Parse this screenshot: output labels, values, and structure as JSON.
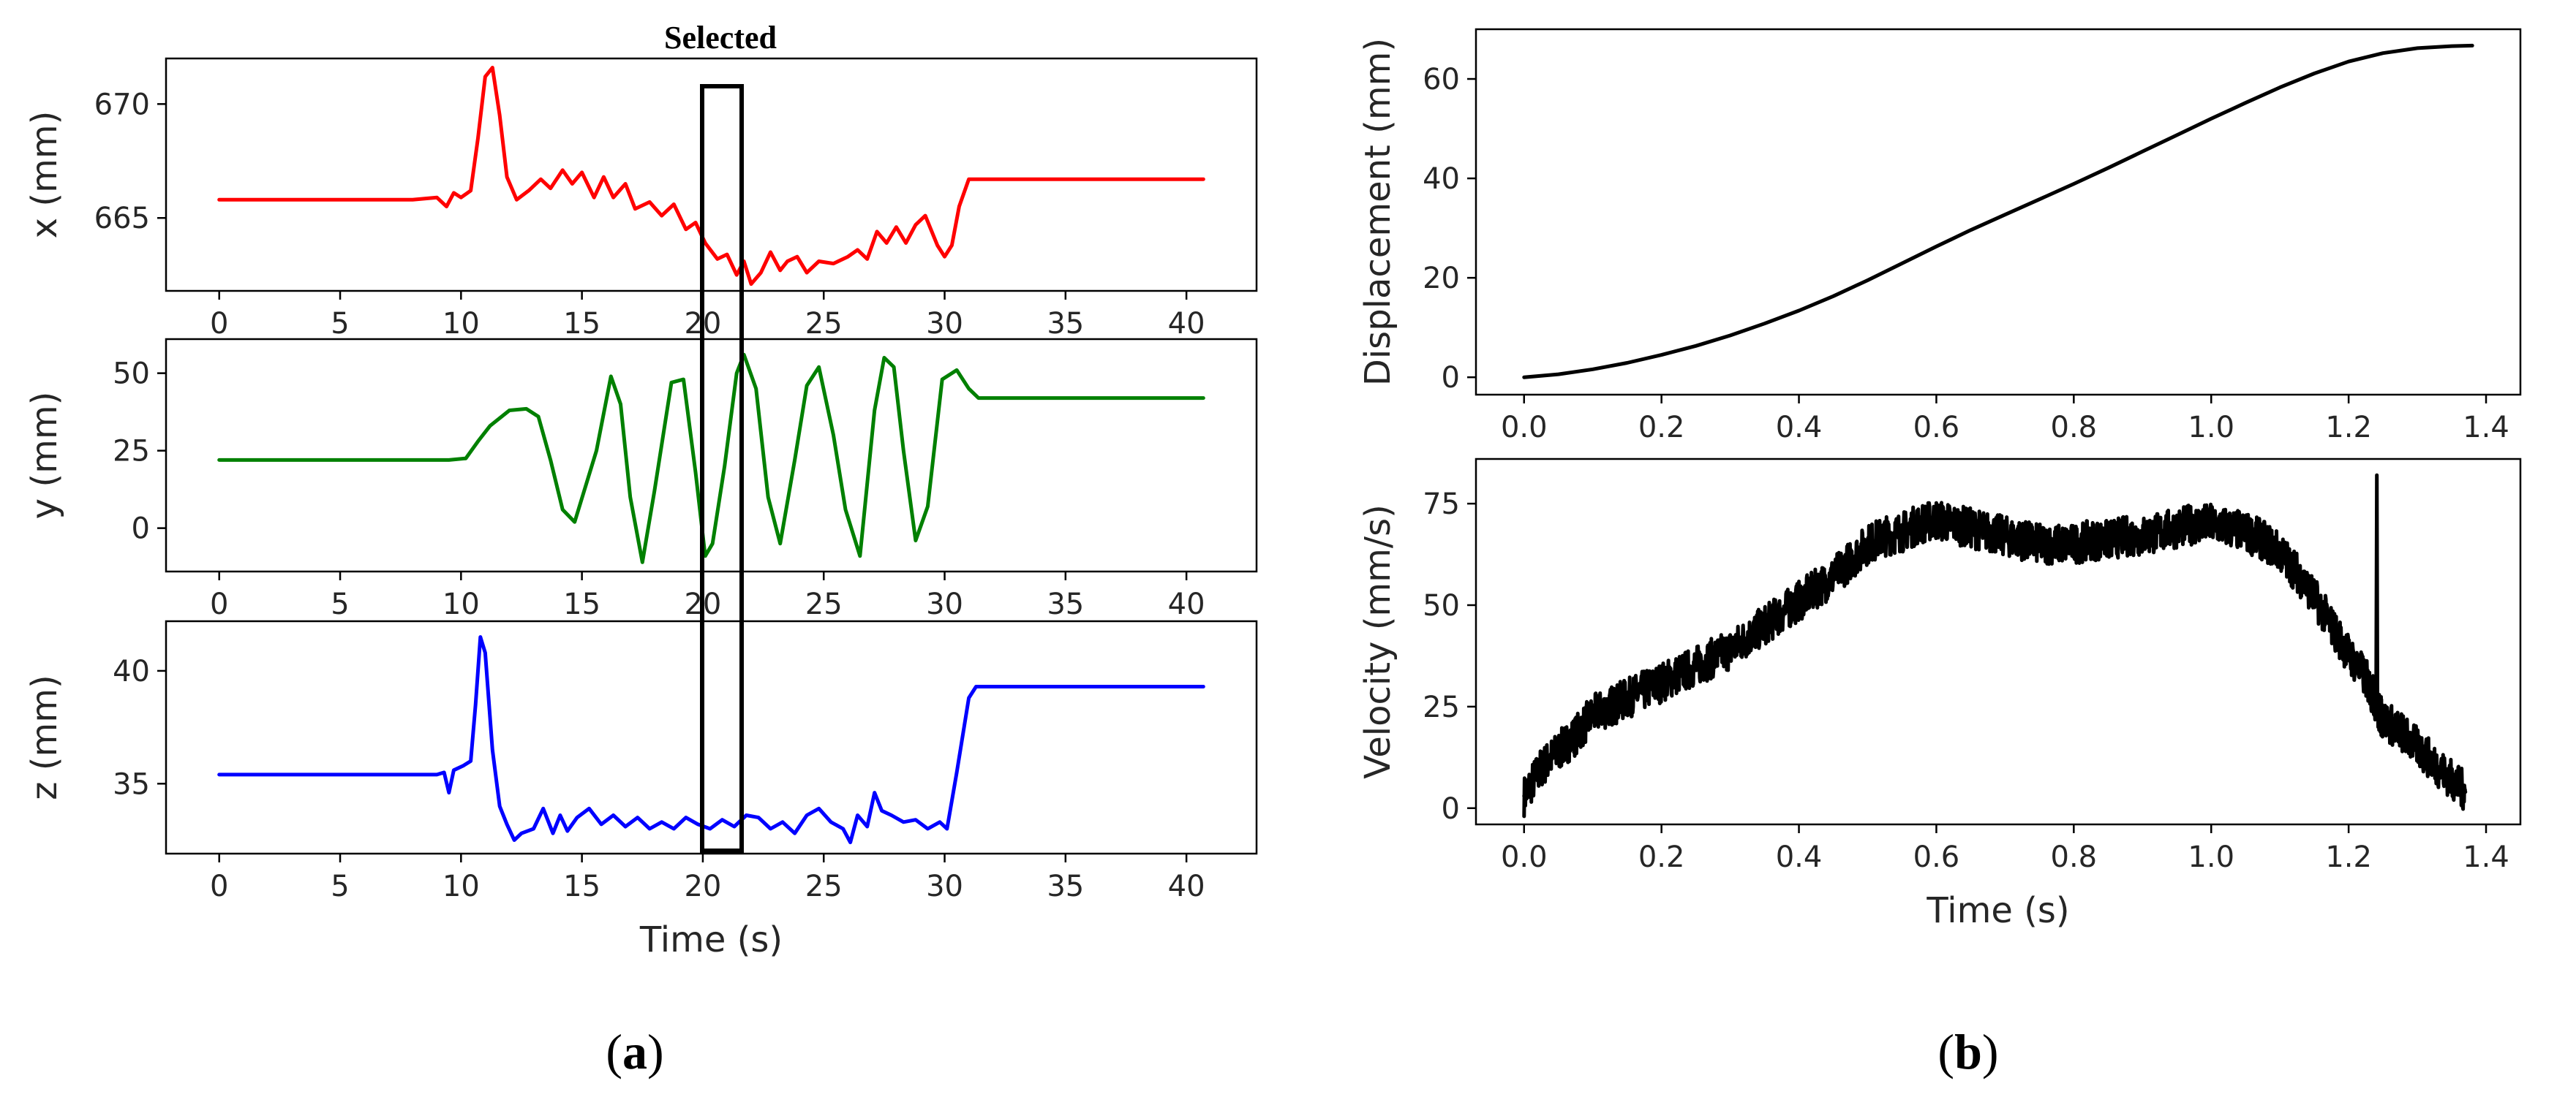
{
  "captions": {
    "a": "(a)",
    "b": "(b)"
  },
  "selected_label": "Selected",
  "chart_data": [
    {
      "id": "x",
      "type": "line",
      "xlabel": "",
      "ylabel": "x (mm)",
      "color": "#ff0000",
      "xlim": [
        -2.2,
        42.9
      ],
      "ylim": [
        661.8,
        672.0
      ],
      "xticks": [
        0,
        5,
        10,
        15,
        20,
        25,
        30,
        35,
        40
      ],
      "yticks": [
        665,
        670
      ],
      "x": [
        0,
        8,
        9,
        9.4,
        9.7,
        10,
        10.4,
        10.7,
        11,
        11.3,
        11.6,
        11.9,
        12.3,
        12.8,
        13.3,
        13.7,
        14.2,
        14.6,
        15,
        15.5,
        15.9,
        16.3,
        16.8,
        17.2,
        17.8,
        18.3,
        18.8,
        19.3,
        19.7,
        20.1,
        20.6,
        21,
        21.4,
        21.7,
        22,
        22.4,
        22.8,
        23.2,
        23.5,
        23.9,
        24.3,
        24.8,
        25.4,
        26,
        26.4,
        26.8,
        27.2,
        27.6,
        28,
        28.4,
        28.8,
        29.2,
        29.7,
        30,
        30.3,
        30.6,
        31,
        31.3,
        31.7,
        35,
        40.7
      ],
      "y": [
        665.8,
        665.8,
        665.9,
        665.5,
        666.1,
        665.9,
        666.2,
        668.5,
        671.2,
        671.6,
        669.5,
        666.8,
        665.8,
        666.2,
        666.7,
        666.3,
        667.1,
        666.5,
        667.0,
        665.9,
        666.8,
        665.9,
        666.5,
        665.4,
        665.7,
        665.1,
        665.6,
        664.5,
        664.8,
        663.9,
        663.2,
        663.4,
        662.5,
        663.1,
        662.1,
        662.6,
        663.5,
        662.7,
        663.1,
        663.3,
        662.6,
        663.1,
        663.0,
        663.3,
        663.6,
        663.2,
        664.4,
        663.9,
        664.6,
        663.9,
        664.7,
        665.1,
        663.8,
        663.3,
        663.8,
        665.5,
        666.7,
        666.7,
        666.7,
        666.7,
        666.7
      ]
    },
    {
      "id": "y",
      "type": "line",
      "xlabel": "",
      "ylabel": "y (mm)",
      "color": "#008000",
      "xlim": [
        -2.2,
        42.9
      ],
      "ylim": [
        -14,
        61
      ],
      "xticks": [
        0,
        5,
        10,
        15,
        20,
        25,
        30,
        35,
        40
      ],
      "yticks": [
        0,
        25,
        50
      ],
      "x": [
        0,
        9.5,
        10.2,
        10.7,
        11.2,
        12,
        12.7,
        13.2,
        13.7,
        14.2,
        14.7,
        15.6,
        16.2,
        16.6,
        17,
        17.5,
        18,
        18.7,
        19.2,
        19.7,
        20.1,
        20.4,
        20.9,
        21.4,
        21.7,
        22.2,
        22.7,
        23.2,
        23.8,
        24.3,
        24.8,
        25.4,
        25.9,
        26.5,
        27.1,
        27.5,
        27.9,
        28.3,
        28.8,
        29.3,
        29.9,
        30.5,
        31,
        31.4,
        40.7
      ],
      "y": [
        22,
        22,
        22.5,
        28,
        33,
        38,
        38.5,
        36,
        22,
        6,
        2,
        25,
        49,
        40,
        10,
        -11,
        12,
        47,
        48,
        18,
        -9,
        -5,
        20,
        50,
        56,
        45,
        10,
        -5,
        22,
        46,
        52,
        30,
        6,
        -9,
        38,
        55,
        52,
        25,
        -4,
        7,
        48,
        51,
        45,
        42,
        42
      ]
    },
    {
      "id": "z",
      "type": "line",
      "xlabel": "Time (s)",
      "ylabel": "z (mm)",
      "color": "#0000ff",
      "xlim": [
        -2.2,
        42.9
      ],
      "ylim": [
        31.9,
        42.2
      ],
      "xticks": [
        0,
        5,
        10,
        15,
        20,
        25,
        30,
        35,
        40
      ],
      "yticks": [
        35,
        40
      ],
      "x": [
        0,
        8,
        9,
        9.3,
        9.5,
        9.7,
        10.1,
        10.4,
        10.6,
        10.8,
        11,
        11.3,
        11.6,
        11.9,
        12.2,
        12.5,
        13,
        13.4,
        13.8,
        14.1,
        14.4,
        14.8,
        15.3,
        15.8,
        16.3,
        16.8,
        17.3,
        17.8,
        18.3,
        18.8,
        19.3,
        19.8,
        20.3,
        20.8,
        21.3,
        21.8,
        22.3,
        22.8,
        23.3,
        23.8,
        24.3,
        24.8,
        25.3,
        25.8,
        26.1,
        26.4,
        26.8,
        27.1,
        27.4,
        27.8,
        28.3,
        28.8,
        29.3,
        29.8,
        30.1,
        30.5,
        31,
        31.3,
        35,
        40.7
      ],
      "y": [
        35.4,
        35.4,
        35.4,
        35.5,
        34.6,
        35.6,
        35.8,
        36.0,
        38.5,
        41.5,
        40.8,
        36.5,
        34.0,
        33.2,
        32.5,
        32.8,
        33.0,
        33.9,
        32.8,
        33.6,
        32.9,
        33.5,
        33.9,
        33.2,
        33.6,
        33.1,
        33.5,
        33.0,
        33.3,
        33.0,
        33.5,
        33.2,
        33.0,
        33.4,
        33.1,
        33.6,
        33.5,
        33.0,
        33.3,
        32.8,
        33.6,
        33.9,
        33.3,
        33.0,
        32.4,
        33.6,
        33.1,
        34.6,
        33.8,
        33.6,
        33.3,
        33.4,
        33.0,
        33.3,
        33.0,
        35.5,
        38.8,
        39.3,
        39.3,
        39.3
      ]
    },
    {
      "id": "displacement",
      "type": "line",
      "xlabel": "",
      "ylabel": "Displacement (mm)",
      "color": "#000000",
      "xlim": [
        -0.07,
        1.45
      ],
      "ylim": [
        -3.5,
        70
      ],
      "xticks": [
        0.0,
        0.2,
        0.4,
        0.6,
        0.8,
        1.0,
        1.2,
        1.4
      ],
      "xtick_labels": [
        "0.0",
        "0.2",
        "0.4",
        "0.6",
        "0.8",
        "1.0",
        "1.2",
        "1.4"
      ],
      "yticks": [
        0,
        20,
        40,
        60
      ],
      "x": [
        0.0,
        0.05,
        0.1,
        0.15,
        0.2,
        0.25,
        0.3,
        0.35,
        0.4,
        0.45,
        0.5,
        0.55,
        0.6,
        0.65,
        0.7,
        0.75,
        0.8,
        0.85,
        0.9,
        0.95,
        1.0,
        1.05,
        1.1,
        1.15,
        1.2,
        1.25,
        1.3,
        1.35,
        1.38
      ],
      "y": [
        0,
        0.6,
        1.6,
        2.9,
        4.5,
        6.3,
        8.4,
        10.8,
        13.4,
        16.3,
        19.5,
        22.9,
        26.3,
        29.6,
        32.7,
        35.8,
        38.9,
        42.1,
        45.4,
        48.7,
        52.0,
        55.2,
        58.3,
        61.1,
        63.5,
        65.2,
        66.2,
        66.6,
        66.7
      ]
    },
    {
      "id": "velocity",
      "type": "line",
      "xlabel": "Time (s)",
      "ylabel": "Velocity (mm/s)",
      "color": "#000000",
      "xlim": [
        -0.07,
        1.45
      ],
      "ylim": [
        -4,
        86
      ],
      "xticks": [
        0.0,
        0.2,
        0.4,
        0.6,
        0.8,
        1.0,
        1.2,
        1.4
      ],
      "xtick_labels": [
        "0.0",
        "0.2",
        "0.4",
        "0.6",
        "0.8",
        "1.0",
        "1.2",
        "1.4"
      ],
      "yticks": [
        0,
        25,
        50,
        75
      ],
      "x": [
        0.0,
        0.025,
        0.05,
        0.075,
        0.1,
        0.125,
        0.15,
        0.175,
        0.2,
        0.225,
        0.25,
        0.275,
        0.3,
        0.325,
        0.35,
        0.375,
        0.4,
        0.425,
        0.45,
        0.475,
        0.5,
        0.525,
        0.55,
        0.575,
        0.6,
        0.625,
        0.65,
        0.675,
        0.7,
        0.725,
        0.75,
        0.775,
        0.8,
        0.825,
        0.85,
        0.875,
        0.9,
        0.925,
        0.95,
        0.975,
        1.0,
        1.025,
        1.05,
        1.075,
        1.1,
        1.125,
        1.15,
        1.175,
        1.2,
        1.225,
        1.24,
        1.241,
        1.242,
        1.25,
        1.275,
        1.3,
        1.325,
        1.35,
        1.37
      ],
      "y": [
        3,
        10,
        14,
        18,
        23,
        25,
        27,
        29,
        31,
        33,
        35,
        37,
        39,
        42,
        45,
        48,
        51,
        54,
        57,
        61,
        65,
        67,
        68,
        70,
        71,
        70,
        69,
        68,
        67,
        66,
        65,
        65,
        65,
        66,
        66,
        67,
        67,
        68,
        69,
        70,
        70,
        69,
        68,
        66,
        63,
        58,
        52,
        45,
        38,
        32,
        26,
        82,
        24,
        22,
        19,
        15,
        11,
        7,
        4
      ]
    }
  ]
}
